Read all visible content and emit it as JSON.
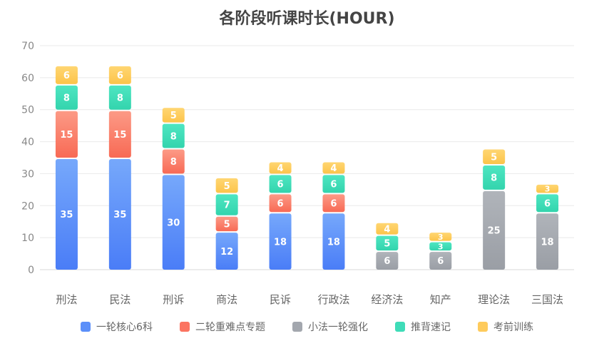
{
  "chart_data": {
    "type": "bar",
    "stacked": true,
    "title": "各阶段听课时长(HOUR)",
    "categories": [
      "刑法",
      "民法",
      "刑诉",
      "商法",
      "民诉",
      "行政法",
      "经济法",
      "知产",
      "理论法",
      "三国法"
    ],
    "ylim": [
      0,
      70
    ],
    "yticks": [
      0,
      10,
      20,
      30,
      40,
      50,
      60,
      70
    ],
    "grid": true,
    "legend_position": "bottom",
    "series": [
      {
        "name": "一轮核心6科",
        "color": "#5b8ff9",
        "values": [
          35,
          35,
          30,
          12,
          18,
          18,
          null,
          null,
          null,
          null
        ]
      },
      {
        "name": "二轮重难点专题",
        "color": "#fb7461",
        "values": [
          15,
          15,
          8,
          5,
          6,
          6,
          null,
          null,
          null,
          null
        ]
      },
      {
        "name": "小法一轮强化",
        "color": "#a3a7ae",
        "values": [
          null,
          null,
          null,
          null,
          null,
          null,
          6,
          6,
          25,
          18
        ]
      },
      {
        "name": "推背速记",
        "color": "#3fdcb8",
        "values": [
          8,
          8,
          8,
          7,
          6,
          6,
          5,
          3,
          8,
          6
        ]
      },
      {
        "name": "考前训练",
        "color": "#fecb5c",
        "values": [
          6,
          6,
          5,
          5,
          4,
          4,
          4,
          3,
          5,
          3
        ]
      }
    ]
  }
}
